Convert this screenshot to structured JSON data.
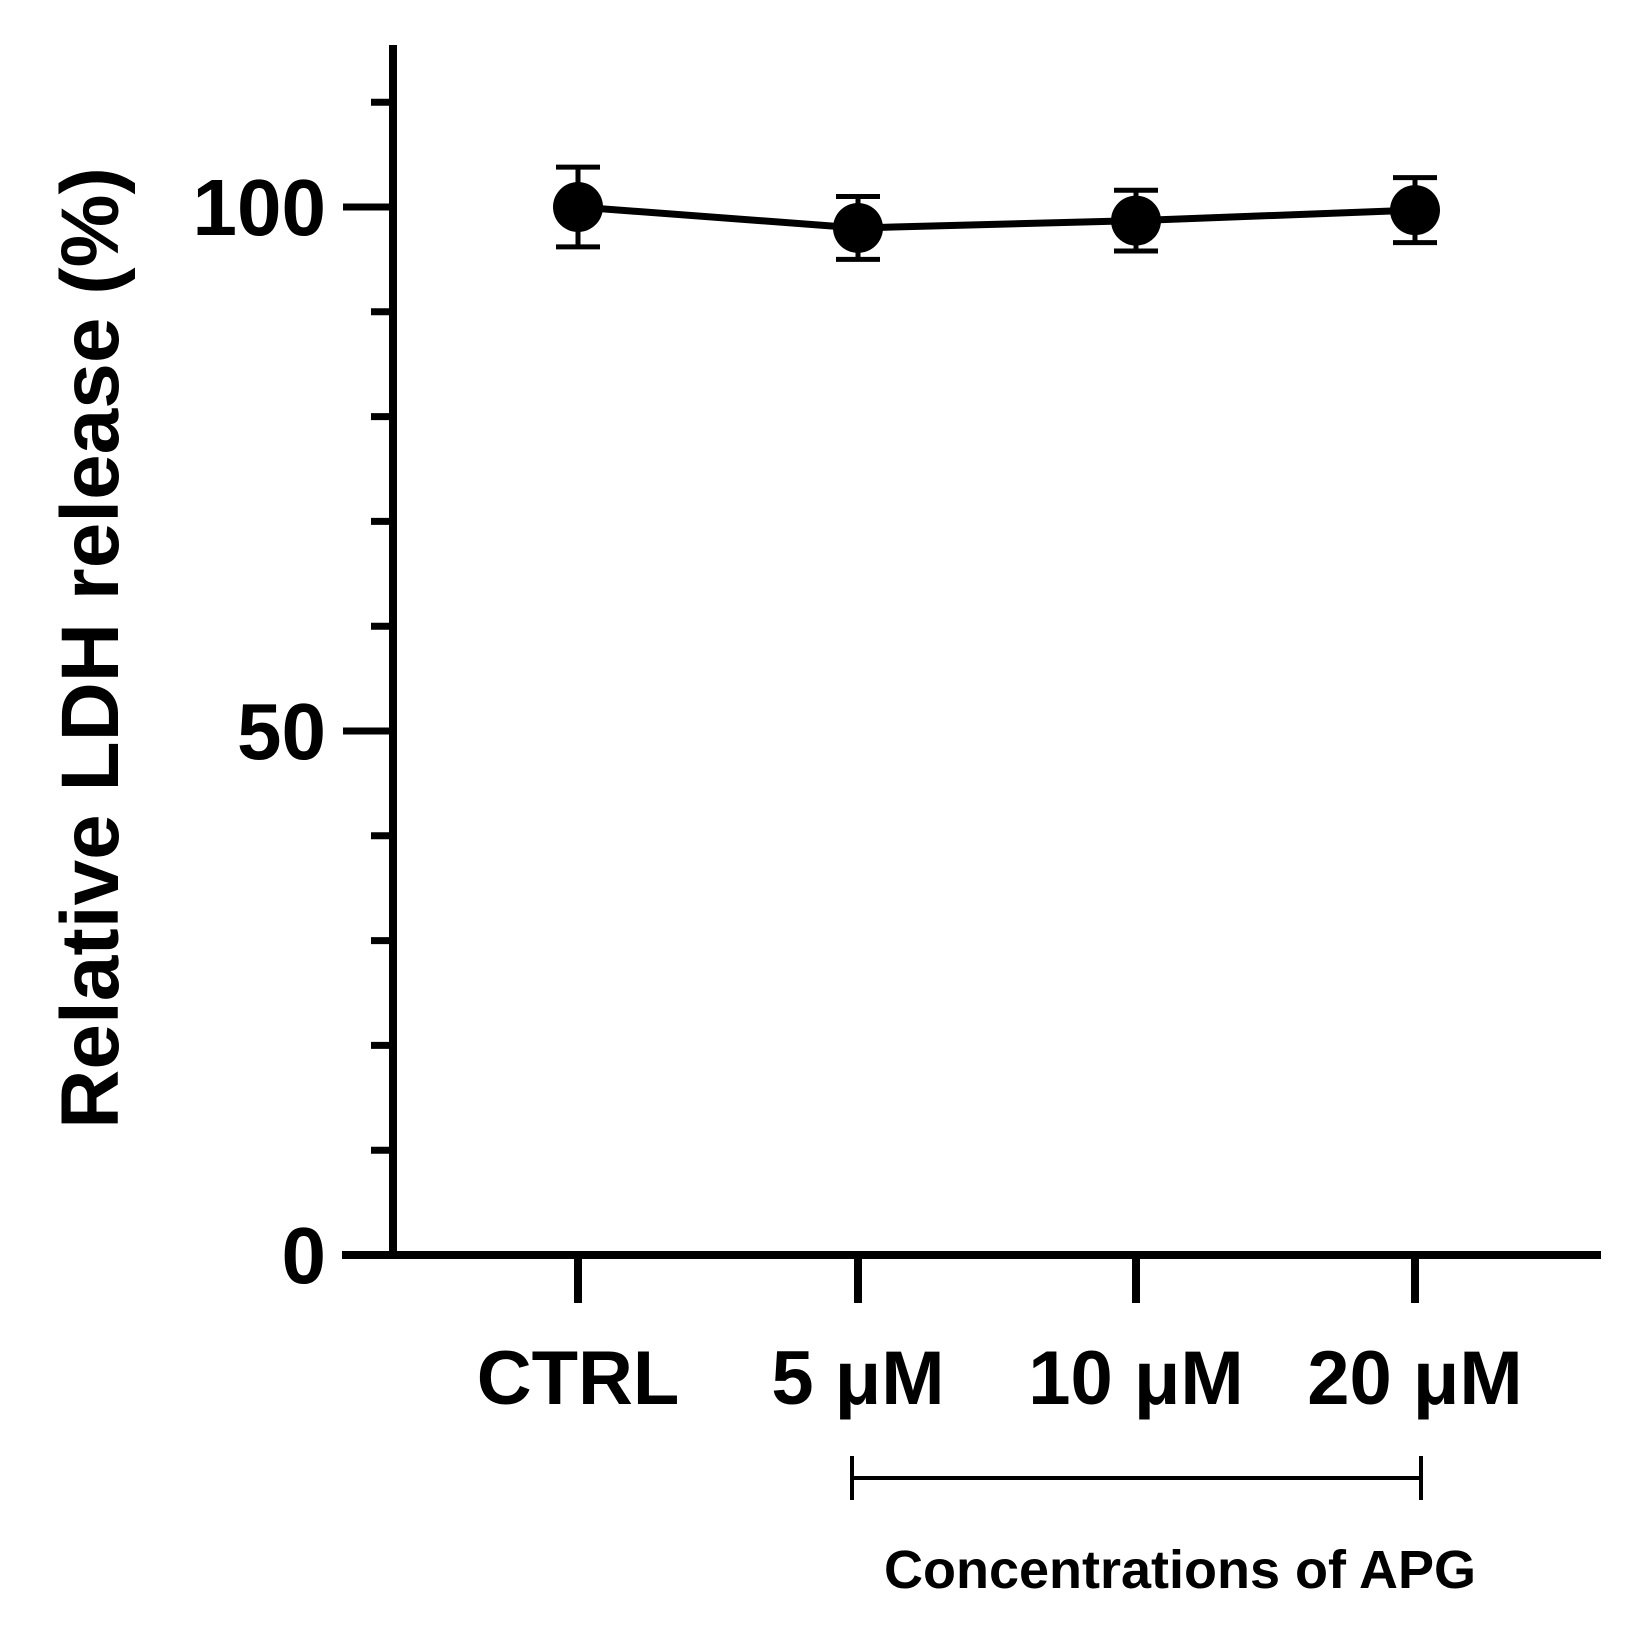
{
  "chart_data": {
    "type": "line",
    "title": "",
    "categories": [
      "CTRL",
      "5 μM",
      "10 μM",
      "20 μM"
    ],
    "series": [
      {
        "values": [
          100,
          98,
          98.7,
          99.7
        ],
        "error": [
          3.8,
          3,
          2.9,
          3.1
        ],
        "color": "#000000"
      }
    ],
    "ylabel": "Relative LDH release (%)",
    "ylim": [
      0,
      115
    ],
    "yticks": [
      "0",
      "50",
      "100"
    ],
    "ytick_values": [
      0,
      50,
      100
    ],
    "y_minor_step": 10,
    "grid": false,
    "legend": "none",
    "group_bracket": {
      "label": "Concentrations of APG",
      "spans": [
        "5 μM",
        "20 μM"
      ]
    }
  }
}
